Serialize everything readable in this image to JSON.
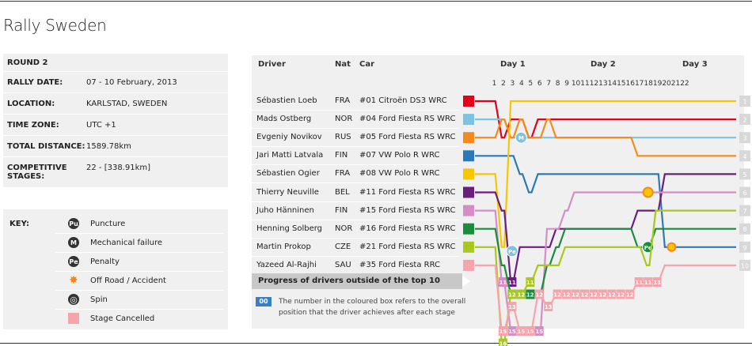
{
  "title": "Rally Sweden",
  "info": [
    {
      "k": "ROUND 2",
      "v": ""
    },
    {
      "k": "RALLY DATE:",
      "v": "07 - 10 February, 2013"
    },
    {
      "k": "LOCATION:",
      "v": "KARLSTAD, SWEDEN"
    },
    {
      "k": "TIME ZONE:",
      "v": "UTC +1"
    },
    {
      "k": "TOTAL DISTANCE:",
      "v": "1589.78km"
    },
    {
      "k": "COMPETITIVE STAGES:",
      "v": "22 - [338.91km]"
    }
  ],
  "key": {
    "label": "KEY:",
    "items": [
      {
        "icon": "puncture-icon",
        "glyph": "Pu",
        "text": "Puncture"
      },
      {
        "icon": "mechanical-failure-icon",
        "glyph": "M",
        "text": "Mechanical failure"
      },
      {
        "icon": "penalty-icon",
        "glyph": "Pe",
        "text": "Penalty"
      },
      {
        "icon": "off-road-accident-icon",
        "glyph": "✸",
        "text": "Off Road / Accident"
      },
      {
        "icon": "spin-icon",
        "glyph": "◎",
        "text": "Spin"
      },
      {
        "icon": "stage-cancelled-icon",
        "glyph": "",
        "text": "Stage Cancelled"
      }
    ]
  },
  "headers": {
    "driver": "Driver",
    "nat": "Nat",
    "car": "Car"
  },
  "days": [
    "Day 1",
    "Day 2",
    "Day 3"
  ],
  "progress_label": "Progress of drivers outside of the top 10",
  "note_box": "00",
  "note": "The number in the coloured box refers to the overall position that the driver achieves after each stage",
  "chart_data": {
    "type": "line",
    "stages": [
      "1",
      "2",
      "3",
      "4",
      "5",
      "6",
      "7",
      "8",
      "9",
      "10",
      "11",
      "12",
      "13",
      "14",
      "15",
      "16",
      "17",
      "18",
      "19",
      "20",
      "21",
      "22"
    ],
    "cancelled_stage": "12",
    "drivers": [
      {
        "name": "Sébastien Loeb",
        "nat": "FRA",
        "car": "#01 Citroën DS3 WRC",
        "color": "#e2001a",
        "positions": [
          1,
          3,
          2,
          2,
          3,
          2,
          2,
          2,
          2,
          2,
          2,
          2,
          2,
          2,
          2,
          2,
          2,
          2,
          2,
          2,
          2,
          2
        ]
      },
      {
        "name": "Mads Ostberg",
        "nat": "NOR",
        "car": "#04 Ford Fiesta RS WRC",
        "color": "#7bc3e0",
        "positions": [
          2,
          2,
          3,
          "M",
          3,
          3,
          3,
          3,
          3,
          3,
          3,
          3,
          3,
          3,
          3,
          3,
          3,
          3,
          3,
          3,
          3,
          3
        ]
      },
      {
        "name": "Evgeniy Novikov",
        "nat": "RUS",
        "car": "#05 Ford Fiesta RS WRC",
        "color": "#f28a1e",
        "positions": [
          3,
          2,
          3,
          2,
          3,
          3,
          2,
          3,
          3,
          3,
          3,
          3,
          3,
          3,
          3,
          3,
          4,
          4,
          4,
          4,
          4,
          4
        ]
      },
      {
        "name": "Jari Matti Latvala",
        "nat": "FIN",
        "car": "#07 VW Polo R WRC",
        "color": "#2a7ab9",
        "positions": [
          4,
          4,
          4,
          5,
          6,
          5,
          5,
          5,
          5,
          5,
          5,
          5,
          5,
          5,
          5,
          5,
          5,
          5,
          5,
          9,
          9,
          9
        ]
      },
      {
        "name": "Sébastien Ogier",
        "nat": "FRA",
        "car": "#08 VW Polo R WRC",
        "color": "#f7c600",
        "positions": [
          5,
          9,
          1,
          1,
          1,
          1,
          1,
          1,
          1,
          1,
          1,
          1,
          1,
          1,
          1,
          1,
          1,
          1,
          1,
          1,
          1,
          1
        ]
      },
      {
        "name": "Thierry Neuville",
        "nat": "BEL",
        "car": "#11 Ford Fiesta RS WRC",
        "color": "#6b1e7e",
        "positions": [
          6,
          7,
          11,
          9,
          9,
          9,
          9,
          8,
          8,
          8,
          8,
          8,
          8,
          8,
          8,
          8,
          7,
          7,
          7,
          5,
          5,
          5
        ]
      },
      {
        "name": "Juho Hänninen",
        "nat": "FIN",
        "car": "#15 Ford Fiesta RS WRC",
        "color": "#d48ec4",
        "positions": [
          7,
          11,
          15,
          15,
          15,
          15,
          8,
          8,
          7,
          6,
          6,
          6,
          6,
          6,
          6,
          6,
          6,
          "Off",
          6,
          6,
          6,
          6
        ]
      },
      {
        "name": "Henning Solberg",
        "nat": "NOR",
        "car": "#16 Ford Fiesta RS WRC",
        "color": "#1a8c3c",
        "positions": [
          8,
          10,
          12,
          12,
          12,
          12,
          10,
          9,
          8,
          8,
          8,
          8,
          8,
          8,
          8,
          8,
          9,
          "Pe",
          8,
          8,
          8,
          8
        ]
      },
      {
        "name": "Martin Prokop",
        "nat": "CZE",
        "car": "#21 Ford Fiesta RS WRC",
        "color": "#a9c71e",
        "positions": [
          9,
          16,
          12,
          12,
          11,
          10,
          10,
          10,
          9,
          9,
          9,
          9,
          9,
          9,
          9,
          9,
          9,
          10,
          7,
          7,
          7,
          7
        ]
      },
      {
        "name": "Yazeed Al-Rajhi",
        "nat": "SAU",
        "car": "#35 Ford Fiesta RRC",
        "color": "#f5a4ab",
        "positions": [
          10,
          15,
          13,
          15,
          15,
          12,
          13,
          12,
          12,
          12,
          12,
          12,
          12,
          12,
          12,
          12,
          11,
          11,
          11,
          10,
          10,
          10
        ]
      }
    ],
    "right_positions": [
      "1",
      "2",
      "3",
      "4",
      "5",
      "6",
      "7",
      "8",
      "9",
      "10"
    ]
  }
}
